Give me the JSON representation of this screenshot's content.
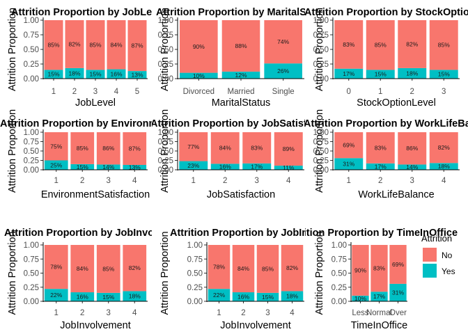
{
  "chart_data": [
    {
      "type": "bar",
      "stacked": true,
      "title": "Attrition Proportion by JobLevel",
      "xlabel": "JobLevel",
      "ylabel": "Attrition Proportion",
      "categories": [
        "1",
        "2",
        "3",
        "4",
        "5"
      ],
      "series": [
        {
          "name": "No",
          "values": [
            0.85,
            0.82,
            0.85,
            0.84,
            0.87
          ],
          "labels": [
            "85%",
            "82%",
            "85%",
            "84%",
            "87%"
          ]
        },
        {
          "name": "Yes",
          "values": [
            0.15,
            0.18,
            0.15,
            0.16,
            0.13
          ],
          "labels": [
            "15%",
            "18%",
            "15%",
            "16%",
            "13%"
          ]
        }
      ],
      "ylim": [
        0,
        1
      ],
      "yticks": [
        "0.00",
        "0.25",
        "0.50",
        "0.75",
        "1.00"
      ]
    },
    {
      "type": "bar",
      "stacked": true,
      "title": "Attrition Proportion by MaritalStatus",
      "xlabel": "MaritalStatus",
      "ylabel": "Attrition Proportion",
      "categories": [
        "Divorced",
        "Married",
        "Single"
      ],
      "series": [
        {
          "name": "No",
          "values": [
            0.9,
            0.88,
            0.74
          ],
          "labels": [
            "90%",
            "88%",
            "74%"
          ]
        },
        {
          "name": "Yes",
          "values": [
            0.1,
            0.12,
            0.26
          ],
          "labels": [
            "10%",
            "12%",
            "26%"
          ]
        }
      ],
      "ylim": [
        0,
        1
      ],
      "yticks": [
        "0.00",
        "0.25",
        "0.50",
        "0.75",
        "1.00"
      ]
    },
    {
      "type": "bar",
      "stacked": true,
      "title": "Attrition Proportion by StockOptionLevel",
      "xlabel": "StockOptionLevel",
      "ylabel": "Attrition Proportion",
      "categories": [
        "0",
        "1",
        "2",
        "3"
      ],
      "series": [
        {
          "name": "No",
          "values": [
            0.83,
            0.85,
            0.82,
            0.85
          ],
          "labels": [
            "83%",
            "85%",
            "82%",
            "85%"
          ]
        },
        {
          "name": "Yes",
          "values": [
            0.17,
            0.15,
            0.18,
            0.15
          ],
          "labels": [
            "17%",
            "15%",
            "18%",
            "15%"
          ]
        }
      ],
      "ylim": [
        0,
        1
      ],
      "yticks": [
        "0.00",
        "0.25",
        "0.50",
        "0.75",
        "1.00"
      ]
    },
    {
      "type": "bar",
      "stacked": true,
      "title": "Attrition Proportion by EnvironmentSatisfaction",
      "xlabel": "EnvironmentSatisfaction",
      "ylabel": "Attrition Proportion",
      "categories": [
        "1",
        "2",
        "3",
        "4"
      ],
      "series": [
        {
          "name": "No",
          "values": [
            0.75,
            0.85,
            0.86,
            0.87
          ],
          "labels": [
            "75%",
            "85%",
            "86%",
            "87%"
          ]
        },
        {
          "name": "Yes",
          "values": [
            0.25,
            0.15,
            0.14,
            0.13
          ],
          "labels": [
            "25%",
            "15%",
            "14%",
            "13%"
          ]
        }
      ],
      "ylim": [
        0,
        1
      ],
      "yticks": [
        "0.00",
        "0.25",
        "0.50",
        "0.75",
        "1.00"
      ]
    },
    {
      "type": "bar",
      "stacked": true,
      "title": "Attrition Proportion by JobSatisfaction",
      "xlabel": "JobSatisfaction",
      "ylabel": "Attrition Proportion",
      "categories": [
        "1",
        "2",
        "3",
        "4"
      ],
      "series": [
        {
          "name": "No",
          "values": [
            0.77,
            0.84,
            0.83,
            0.89
          ],
          "labels": [
            "77%",
            "84%",
            "83%",
            "89%"
          ]
        },
        {
          "name": "Yes",
          "values": [
            0.23,
            0.16,
            0.17,
            0.11
          ],
          "labels": [
            "23%",
            "16%",
            "17%",
            "11%"
          ]
        }
      ],
      "ylim": [
        0,
        1
      ],
      "yticks": [
        "0.00",
        "0.25",
        "0.50",
        "0.75",
        "1.00"
      ]
    },
    {
      "type": "bar",
      "stacked": true,
      "title": "Attrition Proportion by WorkLifeBalance",
      "xlabel": "WorkLifeBalance",
      "ylabel": "Attrition Proportion",
      "categories": [
        "1",
        "2",
        "3",
        "4"
      ],
      "series": [
        {
          "name": "No",
          "values": [
            0.69,
            0.83,
            0.86,
            0.82
          ],
          "labels": [
            "69%",
            "83%",
            "86%",
            "82%"
          ]
        },
        {
          "name": "Yes",
          "values": [
            0.31,
            0.17,
            0.14,
            0.18
          ],
          "labels": [
            "31%",
            "17%",
            "14%",
            "18%"
          ]
        }
      ],
      "ylim": [
        0,
        1
      ],
      "yticks": [
        "0.00",
        "0.25",
        "0.50",
        "0.75",
        "1.00"
      ]
    },
    {
      "type": "bar",
      "stacked": true,
      "title": "Attrition Proportion by JobInvolvement",
      "xlabel": "JobInvolvement",
      "ylabel": "Attrition Proportion",
      "categories": [
        "1",
        "2",
        "3",
        "4"
      ],
      "series": [
        {
          "name": "No",
          "values": [
            0.78,
            0.84,
            0.85,
            0.82
          ],
          "labels": [
            "78%",
            "84%",
            "85%",
            "82%"
          ]
        },
        {
          "name": "Yes",
          "values": [
            0.22,
            0.16,
            0.15,
            0.18
          ],
          "labels": [
            "22%",
            "16%",
            "15%",
            "18%"
          ]
        }
      ],
      "ylim": [
        0,
        1
      ],
      "yticks": [
        "0.00",
        "0.25",
        "0.50",
        "0.75",
        "1.00"
      ]
    },
    {
      "type": "bar",
      "stacked": true,
      "title": "Attrition Proportion by JobInvolvement",
      "xlabel": "JobInvolvement",
      "ylabel": "Attrition Proportion",
      "categories": [
        "1",
        "2",
        "3",
        "4"
      ],
      "series": [
        {
          "name": "No",
          "values": [
            0.78,
            0.84,
            0.85,
            0.82
          ],
          "labels": [
            "78%",
            "84%",
            "85%",
            "82%"
          ]
        },
        {
          "name": "Yes",
          "values": [
            0.22,
            0.16,
            0.15,
            0.18
          ],
          "labels": [
            "22%",
            "16%",
            "15%",
            "18%"
          ]
        }
      ],
      "ylim": [
        0,
        1
      ],
      "yticks": [
        "0.00",
        "0.25",
        "0.50",
        "0.75",
        "1.00"
      ]
    },
    {
      "type": "bar",
      "stacked": true,
      "title": "Attrition Proportion by TimeInOffice",
      "xlabel": "TimeInOffice",
      "ylabel": "Attrition Proportion",
      "categories": [
        "Less",
        "Normal",
        "Over"
      ],
      "series": [
        {
          "name": "No",
          "values": [
            0.9,
            0.83,
            0.69
          ],
          "labels": [
            "90%",
            "83%",
            "69%"
          ]
        },
        {
          "name": "Yes",
          "values": [
            0.1,
            0.17,
            0.31
          ],
          "labels": [
            "10%",
            "17%",
            "31%"
          ]
        }
      ],
      "ylim": [
        0,
        1
      ],
      "yticks": [
        "0.00",
        "0.25",
        "0.50",
        "0.75",
        "1.00"
      ]
    }
  ],
  "legend": {
    "title": "Attrition",
    "items": [
      {
        "label": "No",
        "color": "#F8766D"
      },
      {
        "label": "Yes",
        "color": "#00BFC4"
      }
    ],
    "position": "right"
  },
  "colors": {
    "No": "#F8766D",
    "Yes": "#00BFC4",
    "axis": "#000000",
    "tick": "#4d4d4d"
  }
}
